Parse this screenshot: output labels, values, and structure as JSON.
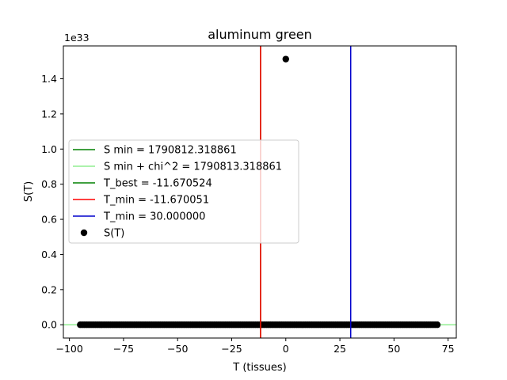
{
  "chart_data": {
    "type": "scatter",
    "title": "aluminum green",
    "xlabel": "T (tissues)",
    "ylabel": "S(T)",
    "y_offset_text": "1e33",
    "xlim": [
      -102.8,
      78.8
    ],
    "ylim": [
      -0.0756,
      1.587
    ],
    "y_scale": 1e+33,
    "xticks": [
      -100,
      -75,
      -50,
      -25,
      0,
      25,
      50,
      75
    ],
    "xtick_labels": [
      "−100",
      "−75",
      "−50",
      "−25",
      "0",
      "25",
      "50",
      "75"
    ],
    "yticks": [
      0.0,
      0.2,
      0.4,
      0.6,
      0.8,
      1.0,
      1.2,
      1.4
    ],
    "ytick_labels": [
      "0.0",
      "0.2",
      "0.4",
      "0.6",
      "0.8",
      "1.0",
      "1.2",
      "1.4"
    ],
    "grid": false,
    "legend_position": "center-left",
    "scatter": {
      "name": "S(T)",
      "color": "#000000",
      "x_range": [
        -95,
        70
      ],
      "x_step": 1,
      "baseline_value": 0.0,
      "outlier": {
        "x": 0,
        "y": 1.512
      }
    },
    "hlines": [
      {
        "name": "S min = 1790812.318861",
        "y": 0.0,
        "color": "#008000"
      },
      {
        "name": "S min + chi^2 = 1790813.318861",
        "y": 0.0,
        "color": "#90ee90"
      }
    ],
    "vlines": [
      {
        "name": "T_best = -11.670524",
        "x": -11.670524,
        "color": "#008000"
      },
      {
        "name": "T_min = -11.670051",
        "x": -11.670051,
        "color": "#ff0000"
      },
      {
        "name": "T_min = 30.000000",
        "x": 30.0,
        "color": "#0000cc"
      }
    ],
    "legend": [
      {
        "label": "S min = 1790812.318861",
        "color": "#008000",
        "kind": "line"
      },
      {
        "label": "S min + chi^2 = 1790813.318861",
        "color": "#90ee90",
        "kind": "line"
      },
      {
        "label": "T_best = -11.670524",
        "color": "#008000",
        "kind": "line"
      },
      {
        "label": "T_min = -11.670051",
        "color": "#ff0000",
        "kind": "line"
      },
      {
        "label": "T_min = 30.000000",
        "color": "#0000cc",
        "kind": "line"
      },
      {
        "label": "S(T)",
        "color": "#000000",
        "kind": "marker"
      }
    ]
  }
}
